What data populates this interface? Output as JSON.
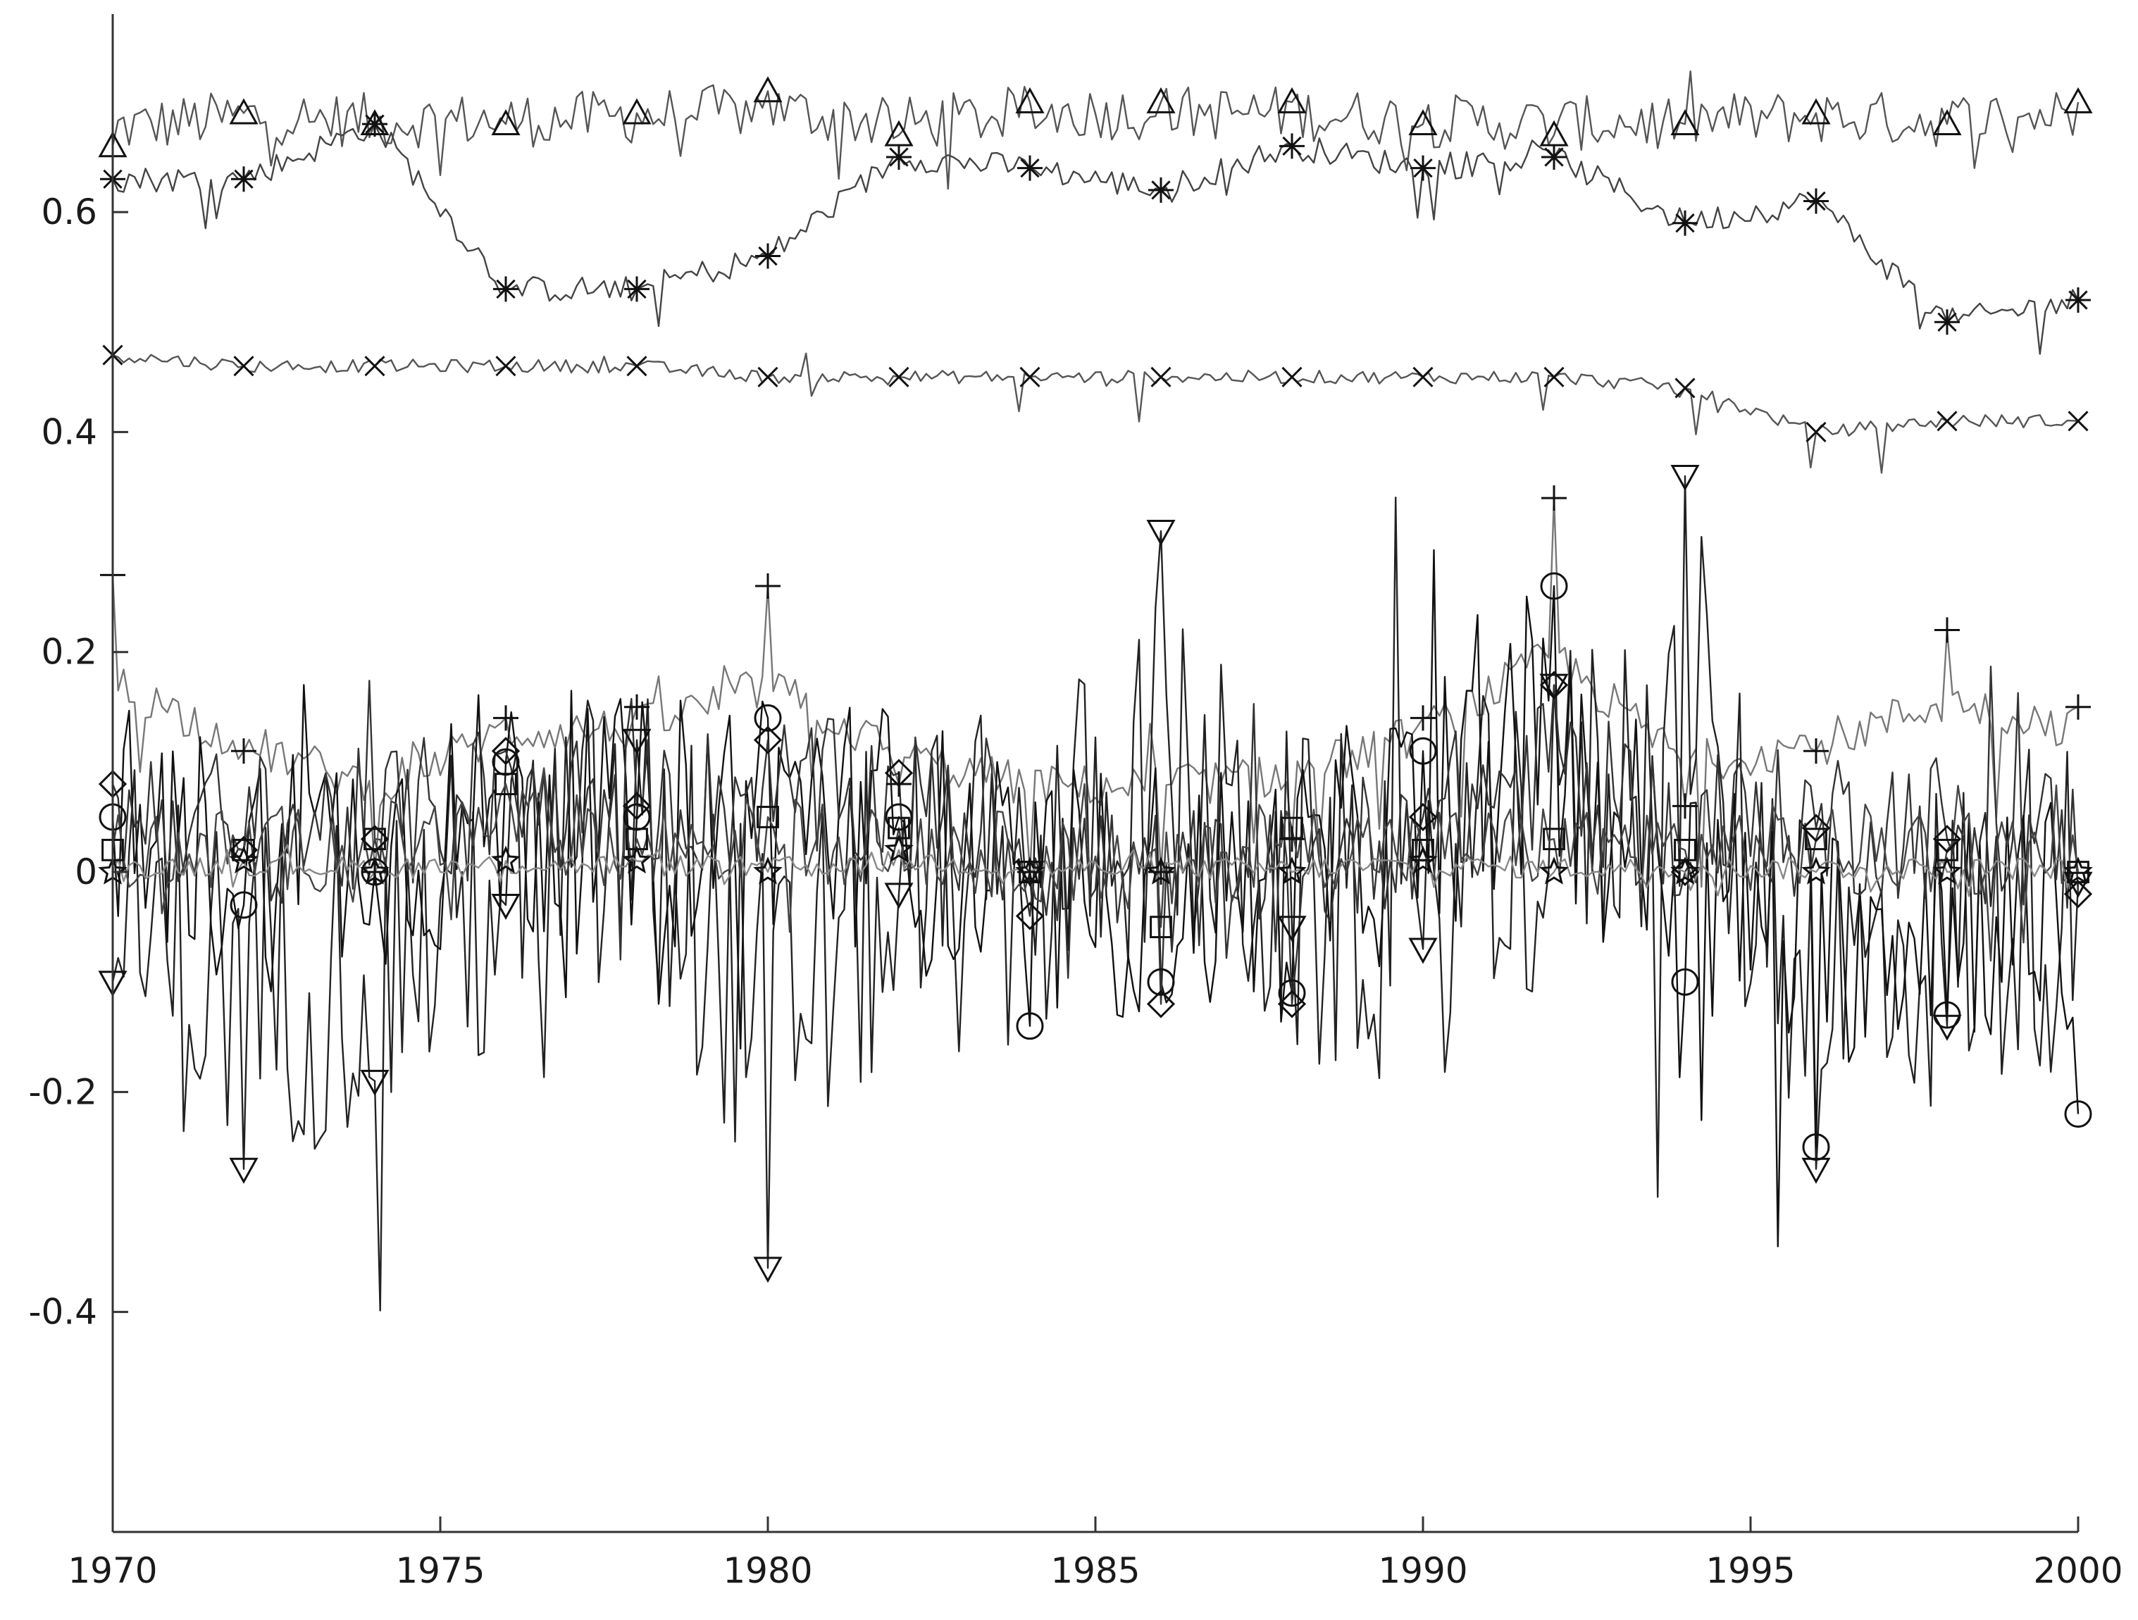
{
  "chart_data": {
    "type": "line",
    "title": "",
    "xlabel": "",
    "ylabel": "",
    "xlim": [
      1970,
      2000
    ],
    "ylim": [
      -0.6,
      0.78
    ],
    "x_ticks": [
      1970,
      1975,
      1980,
      1985,
      1990,
      1995,
      2000
    ],
    "x_tick_labels": [
      "1970",
      "1975",
      "1980",
      "1985",
      "1990",
      "1995",
      "2000"
    ],
    "y_ticks": [
      -0.4,
      -0.2,
      0,
      0.2,
      0.4,
      0.6
    ],
    "y_tick_labels": [
      "-0.4",
      "-0.2",
      "0",
      "0.2",
      "0.4",
      "0.6"
    ],
    "grid": false,
    "legend": "none",
    "marker_x": [
      1970,
      1972,
      1974,
      1976,
      1978,
      1980,
      1982,
      1984,
      1986,
      1988,
      1990,
      1992,
      1994,
      1996,
      1998,
      2000
    ],
    "series": [
      {
        "marker": "triangle-up",
        "color": "#555555",
        "markers": [
          0.66,
          0.69,
          0.68,
          0.68,
          0.69,
          0.71,
          0.67,
          0.7,
          0.7,
          0.7,
          0.68,
          0.67,
          0.68,
          0.69,
          0.68,
          0.7
        ],
        "base": 0.685,
        "noise": 0.025,
        "spikes": 0.045,
        "volatility": 0
      },
      {
        "marker": "asterisk",
        "color": "#444444",
        "markers": [
          0.63,
          0.63,
          0.68,
          0.53,
          0.53,
          0.56,
          0.65,
          0.64,
          0.62,
          0.66,
          0.64,
          0.65,
          0.59,
          0.61,
          0.5,
          0.52
        ],
        "base": null,
        "noise": 0.012,
        "spikes": 0.03,
        "volatility": 0
      },
      {
        "marker": "x",
        "color": "#555555",
        "markers": [
          0.47,
          0.46,
          0.46,
          0.46,
          0.46,
          0.45,
          0.45,
          0.45,
          0.45,
          0.45,
          0.45,
          0.45,
          0.44,
          0.4,
          0.41,
          0.41
        ],
        "base": null,
        "noise": 0.006,
        "spikes": 0.03,
        "volatility": 0
      },
      {
        "marker": "plus",
        "color": "#777777",
        "markers": [
          0.27,
          0.11,
          0.0,
          0.14,
          0.15,
          0.26,
          0.08,
          0.0,
          0.0,
          0.03,
          0.14,
          0.34,
          0.06,
          0.11,
          0.22,
          0.15
        ],
        "base": 0.12,
        "noise": 0.02,
        "spikes": 0.1,
        "volatility": 0
      },
      {
        "marker": "triangle-down",
        "color": "#222222",
        "markers": [
          -0.1,
          -0.27,
          -0.19,
          -0.03,
          0.12,
          -0.36,
          -0.02,
          0.0,
          0.31,
          -0.05,
          -0.07,
          0.17,
          0.36,
          -0.27,
          -0.14,
          -0.01
        ],
        "base": -0.02,
        "noise": 0.16,
        "spikes": 0.25,
        "volatility": 1
      },
      {
        "marker": "circle",
        "color": "#111111",
        "markers": [
          0.05,
          -0.03,
          0.0,
          0.1,
          0.05,
          0.14,
          0.05,
          -0.14,
          -0.1,
          -0.11,
          0.11,
          0.26,
          -0.1,
          -0.25,
          -0.13,
          -0.22
        ],
        "base": 0.03,
        "noise": 0.12,
        "spikes": 0.2,
        "volatility": 1
      },
      {
        "marker": "diamond",
        "color": "#333333",
        "markers": [
          0.08,
          0.02,
          0.03,
          0.11,
          0.06,
          0.12,
          0.09,
          -0.04,
          -0.12,
          -0.12,
          0.05,
          0.17,
          0.0,
          0.04,
          0.03,
          -0.02
        ],
        "base": 0.05,
        "noise": 0.07,
        "spikes": 0.12,
        "volatility": 1
      },
      {
        "marker": "square",
        "color": "#444444",
        "markers": [
          0.02,
          0.02,
          0.03,
          0.08,
          0.03,
          0.05,
          0.04,
          0.0,
          -0.05,
          0.04,
          0.02,
          0.03,
          0.02,
          0.03,
          0.02,
          0.0
        ],
        "base": 0.02,
        "noise": 0.04,
        "spikes": 0.08,
        "volatility": 1
      },
      {
        "marker": "star",
        "color": "#888888",
        "markers": [
          0.0,
          0.01,
          0.0,
          0.01,
          0.01,
          0.0,
          0.02,
          0.0,
          0.0,
          0.0,
          0.01,
          0.0,
          0.0,
          0.0,
          0.0,
          0.0
        ],
        "base": 0.005,
        "noise": 0.01,
        "spikes": 0.02,
        "volatility": 0
      }
    ]
  }
}
